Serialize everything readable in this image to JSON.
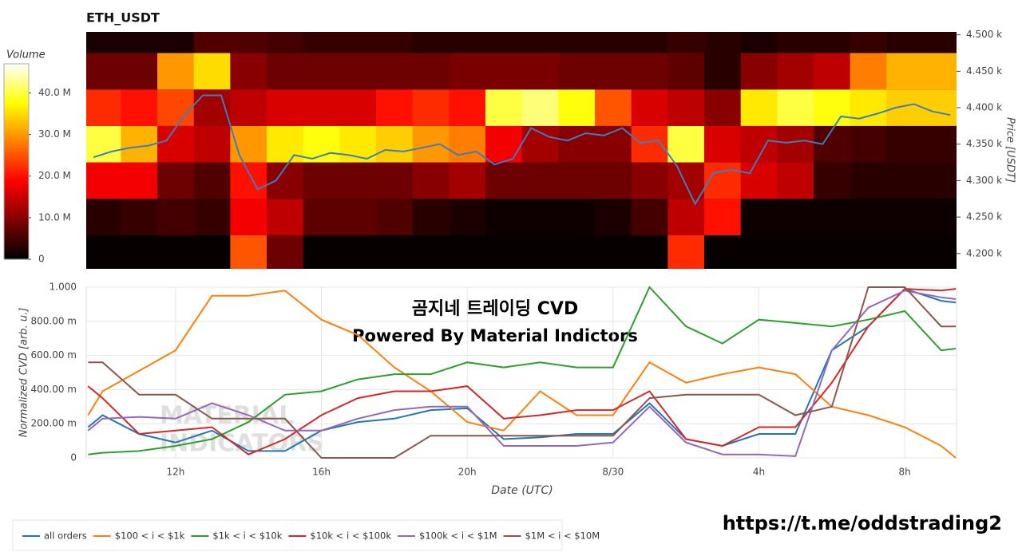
{
  "chart_data": [
    {
      "type": "heatmap",
      "title": "ETH_USDT",
      "ylabel": "Price [USDT]",
      "colorbar_title": "Volume",
      "clim": [
        0,
        47
      ],
      "cticks": [
        0,
        {
          "value": 10,
          "label": "10.0 M"
        },
        {
          "value": 20,
          "label": "20.0 M"
        },
        {
          "value": 30,
          "label": "30.0 M"
        },
        {
          "value": 40,
          "label": "40.0 M"
        }
      ],
      "xlim": [
        9.55,
        33.42
      ],
      "ylim": [
        4179,
        4504
      ],
      "yticks": [
        {
          "value": 4200,
          "label": "4.200 k"
        },
        {
          "value": 4250,
          "label": "4.250 k"
        },
        {
          "value": 4300,
          "label": "4.300 k"
        },
        {
          "value": 4350,
          "label": "4.350 k"
        },
        {
          "value": 4400,
          "label": "4.400 k"
        },
        {
          "value": 4450,
          "label": "4.450 k"
        },
        {
          "value": 4500,
          "label": "4.500 k"
        }
      ],
      "x": [
        10,
        11,
        12,
        13,
        14,
        15,
        16,
        17,
        18,
        19,
        20,
        21,
        22,
        23,
        24,
        25,
        26,
        27,
        28,
        29,
        30,
        31,
        32,
        33
      ],
      "y": [
        4200,
        4250,
        4300,
        4350,
        4400,
        4450,
        4500
      ],
      "z": [
        [
          0.5,
          0.5,
          0.5,
          0.5,
          25,
          8,
          0.5,
          0.5,
          0.5,
          0.5,
          0.5,
          0.5,
          0.5,
          0.5,
          0.5,
          0.5,
          22,
          0.5,
          0.5,
          0.5,
          0.5,
          0.5,
          0.5,
          0.5
        ],
        [
          3,
          4,
          5,
          4,
          18,
          14,
          7,
          7,
          6,
          3,
          2,
          1,
          1,
          1,
          2,
          5,
          14,
          20,
          1,
          1,
          1,
          1,
          1,
          1
        ],
        [
          18,
          18,
          8,
          6,
          20,
          10,
          8,
          8,
          8,
          10,
          12,
          8,
          8,
          8,
          8,
          10,
          12,
          22,
          16,
          14,
          4,
          3,
          3,
          3
        ],
        [
          40,
          32,
          16,
          14,
          30,
          36,
          38,
          36,
          34,
          30,
          28,
          18,
          12,
          10,
          10,
          22,
          40,
          16,
          14,
          12,
          6,
          5,
          4,
          4
        ],
        [
          22,
          20,
          24,
          12,
          14,
          16,
          16,
          16,
          20,
          22,
          20,
          40,
          42,
          38,
          25,
          16,
          14,
          10,
          36,
          40,
          38,
          36,
          34,
          34
        ],
        [
          8,
          8,
          30,
          35,
          10,
          8,
          8,
          8,
          8,
          8,
          9,
          9,
          9,
          8,
          8,
          8,
          7,
          3,
          10,
          12,
          14,
          28,
          32,
          32
        ],
        [
          2,
          2,
          2,
          6,
          6,
          5,
          4,
          4,
          4,
          3,
          3,
          3,
          3,
          3,
          3,
          3,
          4,
          3,
          2,
          3,
          3,
          4,
          3,
          3
        ]
      ],
      "price_line": {
        "color": "#3a7fc1",
        "x": [
          9.75,
          10.25,
          10.75,
          11.25,
          11.75,
          12.25,
          12.75,
          13.25,
          13.75,
          14.25,
          14.75,
          15.25,
          15.75,
          16.25,
          16.75,
          17.25,
          17.75,
          18.25,
          18.75,
          19.25,
          19.75,
          20.25,
          20.75,
          21.25,
          21.75,
          22.25,
          22.75,
          23.25,
          23.75,
          24.25,
          24.75,
          25.25,
          25.75,
          26.25,
          26.75,
          27.25,
          27.75,
          28.25,
          28.75,
          29.25,
          29.75,
          30.25,
          30.75,
          31.25,
          31.75,
          32.25,
          32.75,
          33.25
        ],
        "values": [
          4332,
          4340,
          4345,
          4348,
          4355,
          4390,
          4417,
          4417,
          4335,
          4288,
          4300,
          4335,
          4330,
          4338,
          4335,
          4330,
          4342,
          4340,
          4345,
          4350,
          4335,
          4340,
          4322,
          4330,
          4372,
          4360,
          4355,
          4365,
          4362,
          4372,
          4352,
          4355,
          4320,
          4268,
          4310,
          4315,
          4310,
          4355,
          4352,
          4355,
          4350,
          4388,
          4385,
          4392,
          4400,
          4405,
          4395,
          4390
        ]
      }
    },
    {
      "type": "line",
      "ylabel": "Normalized CVD [arb. u.]",
      "xlabel": "Date (UTC)",
      "xlim": [
        9.55,
        33.42
      ],
      "ylim": [
        0,
        1
      ],
      "grid": true,
      "legend": "bottom",
      "xticks": [
        {
          "value": 12,
          "label": "12h"
        },
        {
          "value": 16,
          "label": "16h"
        },
        {
          "value": 20,
          "label": "20h"
        },
        {
          "value": 24,
          "label": "8/30"
        },
        {
          "value": 28,
          "label": "4h"
        },
        {
          "value": 32,
          "label": "8h"
        }
      ],
      "yticks": [
        0,
        {
          "value": 0.2,
          "label": "200.00 m"
        },
        {
          "value": 0.4,
          "label": "400.00 m"
        },
        {
          "value": 0.6,
          "label": "600.00 m"
        },
        {
          "value": 0.8,
          "label": "800.00 m"
        },
        {
          "value": 1,
          "label": "1.000"
        }
      ],
      "x": [
        9.6,
        10,
        11,
        12,
        13,
        14,
        15,
        16,
        17,
        18,
        19,
        20,
        21,
        22,
        23,
        24,
        25,
        26,
        27,
        28,
        29,
        30,
        31,
        32,
        33,
        33.4
      ],
      "series": [
        {
          "name": "all orders",
          "color": "#1f77b4",
          "values": [
            0.18,
            0.25,
            0.14,
            0.09,
            0.16,
            0.04,
            0.04,
            0.16,
            0.21,
            0.23,
            0.28,
            0.29,
            0.11,
            0.12,
            0.14,
            0.14,
            0.32,
            0.11,
            0.07,
            0.14,
            0.14,
            0.63,
            0.77,
            0.99,
            0.92,
            0.91
          ]
        },
        {
          "name": "$100 < i < $1k",
          "color": "#ff7f0e",
          "values": [
            0.25,
            0.39,
            0.51,
            0.63,
            0.95,
            0.95,
            0.98,
            0.81,
            0.72,
            0.53,
            0.39,
            0.21,
            0.16,
            0.39,
            0.25,
            0.25,
            0.56,
            0.44,
            0.49,
            0.53,
            0.49,
            0.3,
            0.25,
            0.18,
            0.07,
            0
          ]
        },
        {
          "name": "$1k < i < $10k",
          "color": "#2ca02c",
          "values": [
            0.02,
            0.03,
            0.04,
            0.07,
            0.11,
            0.21,
            0.37,
            0.39,
            0.46,
            0.49,
            0.49,
            0.56,
            0.53,
            0.56,
            0.53,
            0.53,
            1,
            0.77,
            0.67,
            0.81,
            0.79,
            0.77,
            0.81,
            0.86,
            0.63,
            0.64
          ]
        },
        {
          "name": "$10k < i < $100k",
          "color": "#d62728",
          "values": [
            0.42,
            0.35,
            0.14,
            0.16,
            0.18,
            0.02,
            0.11,
            0.25,
            0.35,
            0.39,
            0.39,
            0.42,
            0.23,
            0.25,
            0.28,
            0.28,
            0.39,
            0.11,
            0.07,
            0.18,
            0.18,
            0.44,
            0.77,
            0.99,
            0.98,
            0.99
          ]
        },
        {
          "name": "$100k < i < $1M",
          "color": "#9467bd",
          "values": [
            0.16,
            0.23,
            0.24,
            0.23,
            0.32,
            0.25,
            0.16,
            0.16,
            0.23,
            0.28,
            0.3,
            0.3,
            0.07,
            0.07,
            0.07,
            0.09,
            0.3,
            0.09,
            0.02,
            0.02,
            0.01,
            0.63,
            0.88,
            0.98,
            0.94,
            0.93
          ]
        },
        {
          "name": "$1M < i < $10M",
          "color": "#8c564b",
          "values": [
            0.56,
            0.56,
            0.37,
            0.37,
            0.23,
            0.23,
            0.23,
            0,
            0,
            0,
            0.13,
            0.13,
            0.13,
            0.13,
            0.13,
            0.13,
            0.35,
            0.37,
            0.37,
            0.37,
            0.25,
            0.3,
            1,
            1,
            0.77,
            0.77
          ]
        }
      ],
      "annotations": [
        "곰지네 트레이딩 CVD",
        "Powered By Material Indictors"
      ],
      "watermark": [
        "MATERIAL",
        "INDICATORS"
      ]
    }
  ],
  "footer_link": "https://t.me/oddstrading2"
}
